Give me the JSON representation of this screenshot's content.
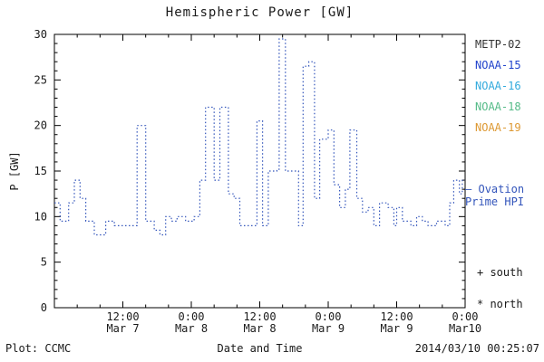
{
  "chart_data": {
    "type": "line",
    "style": "dotted-step",
    "title": "Hemispheric Power [GW]",
    "xlabel": "Date and Time",
    "ylabel": "P [GW]",
    "ylim": [
      0,
      30
    ],
    "x_range_hours": [
      0,
      72
    ],
    "y_ticks": [
      0,
      5,
      10,
      15,
      20,
      25,
      30
    ],
    "y_minor_step": 1,
    "x_minor_step_hours": 4,
    "x_ticks": [
      {
        "hour": 12,
        "time": "12:00",
        "date": "Mar 7"
      },
      {
        "hour": 24,
        "time": "0:00",
        "date": "Mar 8"
      },
      {
        "hour": 36,
        "time": "12:00",
        "date": "Mar 8"
      },
      {
        "hour": 48,
        "time": "0:00",
        "date": "Mar 9"
      },
      {
        "hour": 60,
        "time": "12:00",
        "date": "Mar 9"
      },
      {
        "hour": 72,
        "time": "0:00",
        "date": "Mar10"
      }
    ],
    "grid": false,
    "legend_position": "right-outside",
    "line_color": "#3355bb",
    "axis_color": "#000000",
    "text_color": "#1a1a1a",
    "series": [
      {
        "name": "Ovation Prime HPI",
        "step_points": [
          [
            0,
            11.5
          ],
          [
            1,
            9.5
          ],
          [
            2.5,
            11.5
          ],
          [
            3.5,
            14
          ],
          [
            4.5,
            12
          ],
          [
            5.5,
            9.5
          ],
          [
            7,
            8
          ],
          [
            9,
            9.5
          ],
          [
            10.5,
            9
          ],
          [
            14.5,
            20
          ],
          [
            16,
            9.5
          ],
          [
            17.5,
            8.5
          ],
          [
            18.5,
            8
          ],
          [
            19.5,
            10
          ],
          [
            20.5,
            9.5
          ],
          [
            21.5,
            10
          ],
          [
            23,
            9.5
          ],
          [
            24.5,
            10
          ],
          [
            25.5,
            14
          ],
          [
            26.5,
            22
          ],
          [
            28,
            14
          ],
          [
            29,
            22
          ],
          [
            30.5,
            12.5
          ],
          [
            31.5,
            12
          ],
          [
            32.5,
            9
          ],
          [
            35.5,
            20.5
          ],
          [
            36.5,
            9
          ],
          [
            37.5,
            15
          ],
          [
            39,
            15.2
          ],
          [
            39.4,
            29.5
          ],
          [
            40.5,
            15
          ],
          [
            42.8,
            9
          ],
          [
            43.6,
            26.5
          ],
          [
            44.6,
            27
          ],
          [
            45.6,
            12
          ],
          [
            46.5,
            18.5
          ],
          [
            48,
            19.5
          ],
          [
            49,
            13.5
          ],
          [
            50,
            11
          ],
          [
            51,
            13
          ],
          [
            51.8,
            19.5
          ],
          [
            53,
            12
          ],
          [
            54,
            10.5
          ],
          [
            55,
            11
          ],
          [
            56,
            9
          ],
          [
            57,
            11.5
          ],
          [
            58.5,
            11
          ],
          [
            59.5,
            9
          ],
          [
            60,
            11
          ],
          [
            61,
            9.5
          ],
          [
            62.5,
            9
          ],
          [
            63.5,
            10
          ],
          [
            64.5,
            9.5
          ],
          [
            65.5,
            9
          ],
          [
            67,
            9.5
          ],
          [
            68.5,
            9
          ],
          [
            69.3,
            11.5
          ],
          [
            70,
            14
          ],
          [
            71,
            12.5
          ],
          [
            71.5,
            14
          ]
        ]
      }
    ]
  },
  "legend": {
    "satellites": [
      {
        "label": "METP-02",
        "color": "#333333"
      },
      {
        "label": "NOAA-15",
        "color": "#2244cc"
      },
      {
        "label": "NOAA-16",
        "color": "#33aadd"
      },
      {
        "label": "NOAA-18",
        "color": "#55bb88"
      },
      {
        "label": "NOAA-19",
        "color": "#dd9933"
      }
    ]
  },
  "right_labels": {
    "ovation_dash": "—",
    "ovation_line1": "Ovation",
    "ovation_line2": "Prime HPI",
    "south_marker": "+ south",
    "north_marker": "* north"
  },
  "footer": {
    "plot_source": "Plot: CCMC",
    "timestamp": "2014/03/10 00:25:07"
  }
}
